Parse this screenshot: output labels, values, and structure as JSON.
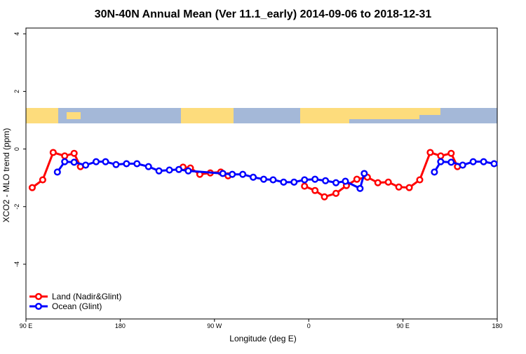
{
  "chart_data": {
    "type": "line",
    "title": "30N-40N Annual Mean (Ver 11.1_early)   2014-09-06 to 2018-12-31",
    "xlabel": "Longitude (deg E)",
    "ylabel": "XCO2 - MLO trend (ppm)",
    "xlim": [
      90,
      540
    ],
    "ylim": [
      -5.9,
      4.2
    ],
    "xticks": [
      {
        "value": 90,
        "label": "90 E"
      },
      180,
      {
        "value": 270,
        "label": "90 W"
      },
      {
        "value": 360,
        "label": "0"
      },
      {
        "value": 450,
        "label": "90 E"
      },
      {
        "value": 540,
        "label": "180"
      }
    ],
    "yticks": [
      -4,
      -2,
      0,
      2,
      4
    ],
    "legend": "bottom-left",
    "series": [
      {
        "name": "Land (Nadir&Glint)",
        "color": "#ff0000",
        "x": [
          96,
          106,
          116,
          127,
          136,
          142,
          190,
          240,
          247,
          256,
          266,
          276,
          283,
          320,
          356,
          366,
          375,
          386,
          396,
          406,
          416,
          426,
          436,
          446,
          456,
          466,
          476,
          486,
          496,
          502
        ],
        "values": [
          -1.34,
          -1.07,
          -0.12,
          -0.24,
          -0.15,
          -0.61,
          null,
          -0.63,
          -0.66,
          -0.88,
          -0.83,
          -0.8,
          -0.93,
          null,
          -1.29,
          -1.44,
          -1.66,
          -1.54,
          -1.27,
          -1.05,
          -0.98,
          -1.17,
          -1.15,
          -1.32,
          -1.34,
          -1.07,
          -0.12,
          -0.24,
          -0.15,
          -0.61
        ]
      },
      {
        "name": "Ocean (Glint)",
        "color": "#0000ff",
        "x": [
          120,
          127,
          136,
          147,
          157,
          166,
          176,
          186,
          196,
          207,
          217,
          227,
          236,
          245,
          278,
          287,
          297,
          307,
          317,
          326,
          336,
          346,
          356,
          366,
          376,
          386,
          395,
          409,
          413,
          446,
          480,
          486,
          496,
          507,
          517,
          527,
          537
        ],
        "values": [
          -0.8,
          -0.44,
          -0.46,
          -0.56,
          -0.44,
          -0.44,
          -0.54,
          -0.51,
          -0.51,
          -0.61,
          -0.76,
          -0.73,
          -0.71,
          -0.76,
          -0.85,
          -0.88,
          -0.88,
          -0.98,
          -1.05,
          -1.07,
          -1.15,
          -1.15,
          -1.07,
          -1.05,
          -1.1,
          -1.17,
          -1.12,
          -1.37,
          -0.85,
          null,
          -0.8,
          -0.44,
          -0.46,
          -0.56,
          -0.44,
          -0.44,
          -0.51
        ]
      }
    ]
  }
}
